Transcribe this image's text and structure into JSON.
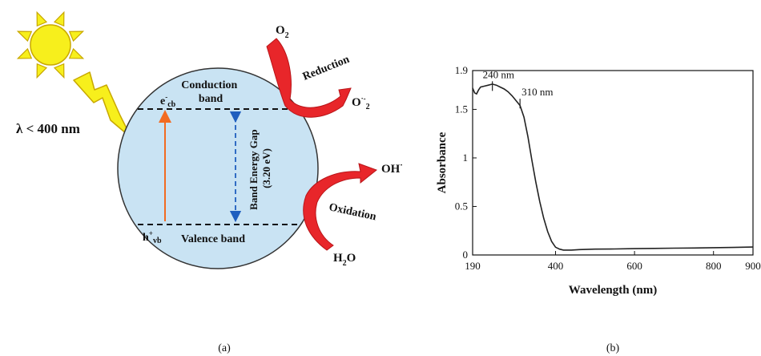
{
  "panel_a": {
    "light_label": "λ < 400 nm",
    "conduction_band": [
      "Conduction",
      "band"
    ],
    "electron": {
      "base": "e",
      "sup": "-",
      "sub": "cb"
    },
    "hole": {
      "base": "h",
      "sup": "+",
      "sub": "vb"
    },
    "valence_band": "Valence band",
    "gap_label": [
      "Band Energy Gap",
      "(3.20 eV)"
    ],
    "o2": {
      "base": "O",
      "sub": "2"
    },
    "reduction": "Reduction",
    "superoxide": {
      "base": "O",
      "sup": "·-",
      "sub": "2"
    },
    "hydroxyl": {
      "base": "OH",
      "sup": "·"
    },
    "oxidation": "Oxidation",
    "water": {
      "base": "H",
      "sub": "2",
      "tail": "O"
    },
    "caption": "(a)",
    "colors": {
      "sun": "#f7ef1c",
      "sun_stroke": "#c8a800",
      "particle": "#c9e3f3",
      "arrow_red": "#e8262a",
      "electron_arrow": "#f26b21",
      "gap_arrow": "#1f5fbf"
    }
  },
  "panel_b": {
    "caption": "(b)",
    "chart_data": {
      "type": "line",
      "xlabel": "Wavelength (nm)",
      "ylabel": "Absorbance",
      "xlim": [
        190,
        900
      ],
      "ylim": [
        0,
        1.9
      ],
      "xticks": [
        190,
        400,
        600,
        800,
        900
      ],
      "yticks": [
        0,
        0.5,
        1,
        1.5,
        1.9
      ],
      "xtick_labels": [
        "190",
        "400",
        "600",
        "800",
        "900"
      ],
      "ytick_labels": [
        "0",
        "0.5",
        "1",
        "1.5",
        "1.9"
      ],
      "annotations": [
        {
          "text": "240 nm",
          "x": 240,
          "y": 1.74
        },
        {
          "text": "310 nm",
          "x": 310,
          "y": 1.56
        }
      ],
      "series": [
        {
          "x": [
            190,
            195,
            200,
            205,
            210,
            220,
            230,
            240,
            250,
            260,
            270,
            280,
            290,
            300,
            310,
            320,
            330,
            340,
            350,
            360,
            370,
            380,
            390,
            400,
            410,
            420,
            430,
            440,
            460,
            500,
            550,
            600,
            650,
            700,
            750,
            800,
            850,
            900
          ],
          "y": [
            1.72,
            1.67,
            1.66,
            1.7,
            1.73,
            1.74,
            1.75,
            1.76,
            1.75,
            1.73,
            1.71,
            1.68,
            1.64,
            1.59,
            1.54,
            1.42,
            1.22,
            0.98,
            0.75,
            0.55,
            0.38,
            0.24,
            0.14,
            0.08,
            0.06,
            0.05,
            0.05,
            0.05,
            0.055,
            0.06,
            0.062,
            0.065,
            0.068,
            0.07,
            0.072,
            0.075,
            0.078,
            0.082
          ]
        }
      ]
    }
  }
}
